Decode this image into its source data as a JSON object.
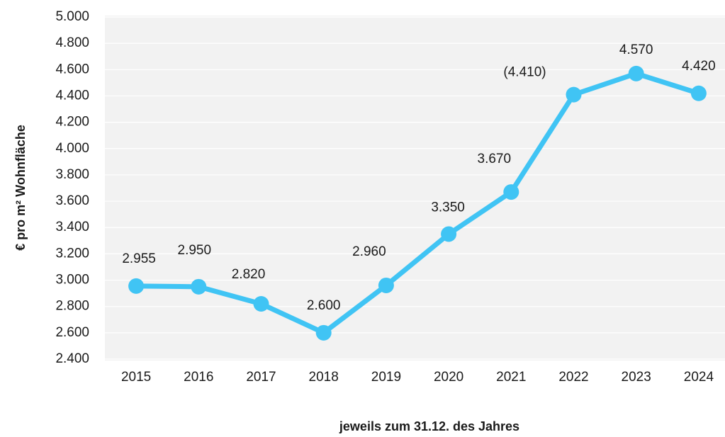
{
  "chart_data": {
    "type": "line",
    "x_label": "jeweils zum 31.12. des Jahres",
    "y_label": "€ pro m² Wohnfläche",
    "categories": [
      "2015",
      "2016",
      "2017",
      "2018",
      "2019",
      "2020",
      "2021",
      "2022",
      "2023",
      "2024"
    ],
    "series": [
      {
        "name": "€ pro m² Wohnfläche",
        "color": "#40c4f4",
        "values": [
          2955,
          2950,
          2820,
          2600,
          2960,
          3350,
          3670,
          4410,
          4570,
          4420
        ],
        "value_labels": [
          "2.955",
          "2.950",
          "2.820",
          "2.600",
          "2.960",
          "3.350",
          "3.670",
          "(4.410)",
          "4.570",
          "4.420"
        ]
      }
    ],
    "ylim": [
      2400,
      5000
    ],
    "yticks": [
      {
        "value": 2400,
        "label": "2.400"
      },
      {
        "value": 2600,
        "label": "2.600"
      },
      {
        "value": 2800,
        "label": "2.800"
      },
      {
        "value": 3000,
        "label": "3.000"
      },
      {
        "value": 3200,
        "label": "3.200"
      },
      {
        "value": 3400,
        "label": "3.400"
      },
      {
        "value": 3600,
        "label": "3.600"
      },
      {
        "value": 3800,
        "label": "3.800"
      },
      {
        "value": 4000,
        "label": "4.000"
      },
      {
        "value": 4200,
        "label": "4.200"
      },
      {
        "value": 4400,
        "label": "4.400"
      },
      {
        "value": 4600,
        "label": "4.600"
      },
      {
        "value": 4800,
        "label": "4.800"
      },
      {
        "value": 5000,
        "label": "5.000"
      }
    ],
    "grid": true
  }
}
